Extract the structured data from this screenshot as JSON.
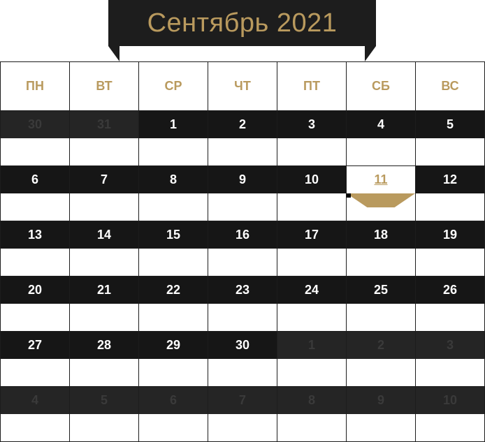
{
  "header": {
    "title": "Сентябрь 2021"
  },
  "colors": {
    "accent": "#b99a5e",
    "dark": "#161616",
    "muted": "#252525",
    "muted_text": "#3a3a3a"
  },
  "weekdays": [
    "ПН",
    "ВТ",
    "СР",
    "ЧТ",
    "ПТ",
    "СБ",
    "ВС"
  ],
  "weeks": [
    [
      {
        "day": "30",
        "current": false
      },
      {
        "day": "31",
        "current": false
      },
      {
        "day": "1",
        "current": true
      },
      {
        "day": "2",
        "current": true
      },
      {
        "day": "3",
        "current": true
      },
      {
        "day": "4",
        "current": true
      },
      {
        "day": "5",
        "current": true
      }
    ],
    [
      {
        "day": "6",
        "current": true
      },
      {
        "day": "7",
        "current": true
      },
      {
        "day": "8",
        "current": true
      },
      {
        "day": "9",
        "current": true
      },
      {
        "day": "10",
        "current": true
      },
      {
        "day": "11",
        "current": true,
        "today": true
      },
      {
        "day": "12",
        "current": true
      }
    ],
    [
      {
        "day": "13",
        "current": true
      },
      {
        "day": "14",
        "current": true
      },
      {
        "day": "15",
        "current": true
      },
      {
        "day": "16",
        "current": true
      },
      {
        "day": "17",
        "current": true
      },
      {
        "day": "18",
        "current": true
      },
      {
        "day": "19",
        "current": true
      }
    ],
    [
      {
        "day": "20",
        "current": true
      },
      {
        "day": "21",
        "current": true
      },
      {
        "day": "22",
        "current": true
      },
      {
        "day": "23",
        "current": true
      },
      {
        "day": "24",
        "current": true
      },
      {
        "day": "25",
        "current": true
      },
      {
        "day": "26",
        "current": true
      }
    ],
    [
      {
        "day": "27",
        "current": true
      },
      {
        "day": "28",
        "current": true
      },
      {
        "day": "29",
        "current": true
      },
      {
        "day": "30",
        "current": true
      },
      {
        "day": "1",
        "current": false
      },
      {
        "day": "2",
        "current": false
      },
      {
        "day": "3",
        "current": false
      }
    ],
    [
      {
        "day": "4",
        "current": false
      },
      {
        "day": "5",
        "current": false
      },
      {
        "day": "6",
        "current": false
      },
      {
        "day": "7",
        "current": false
      },
      {
        "day": "8",
        "current": false
      },
      {
        "day": "9",
        "current": false
      },
      {
        "day": "10",
        "current": false
      }
    ]
  ]
}
